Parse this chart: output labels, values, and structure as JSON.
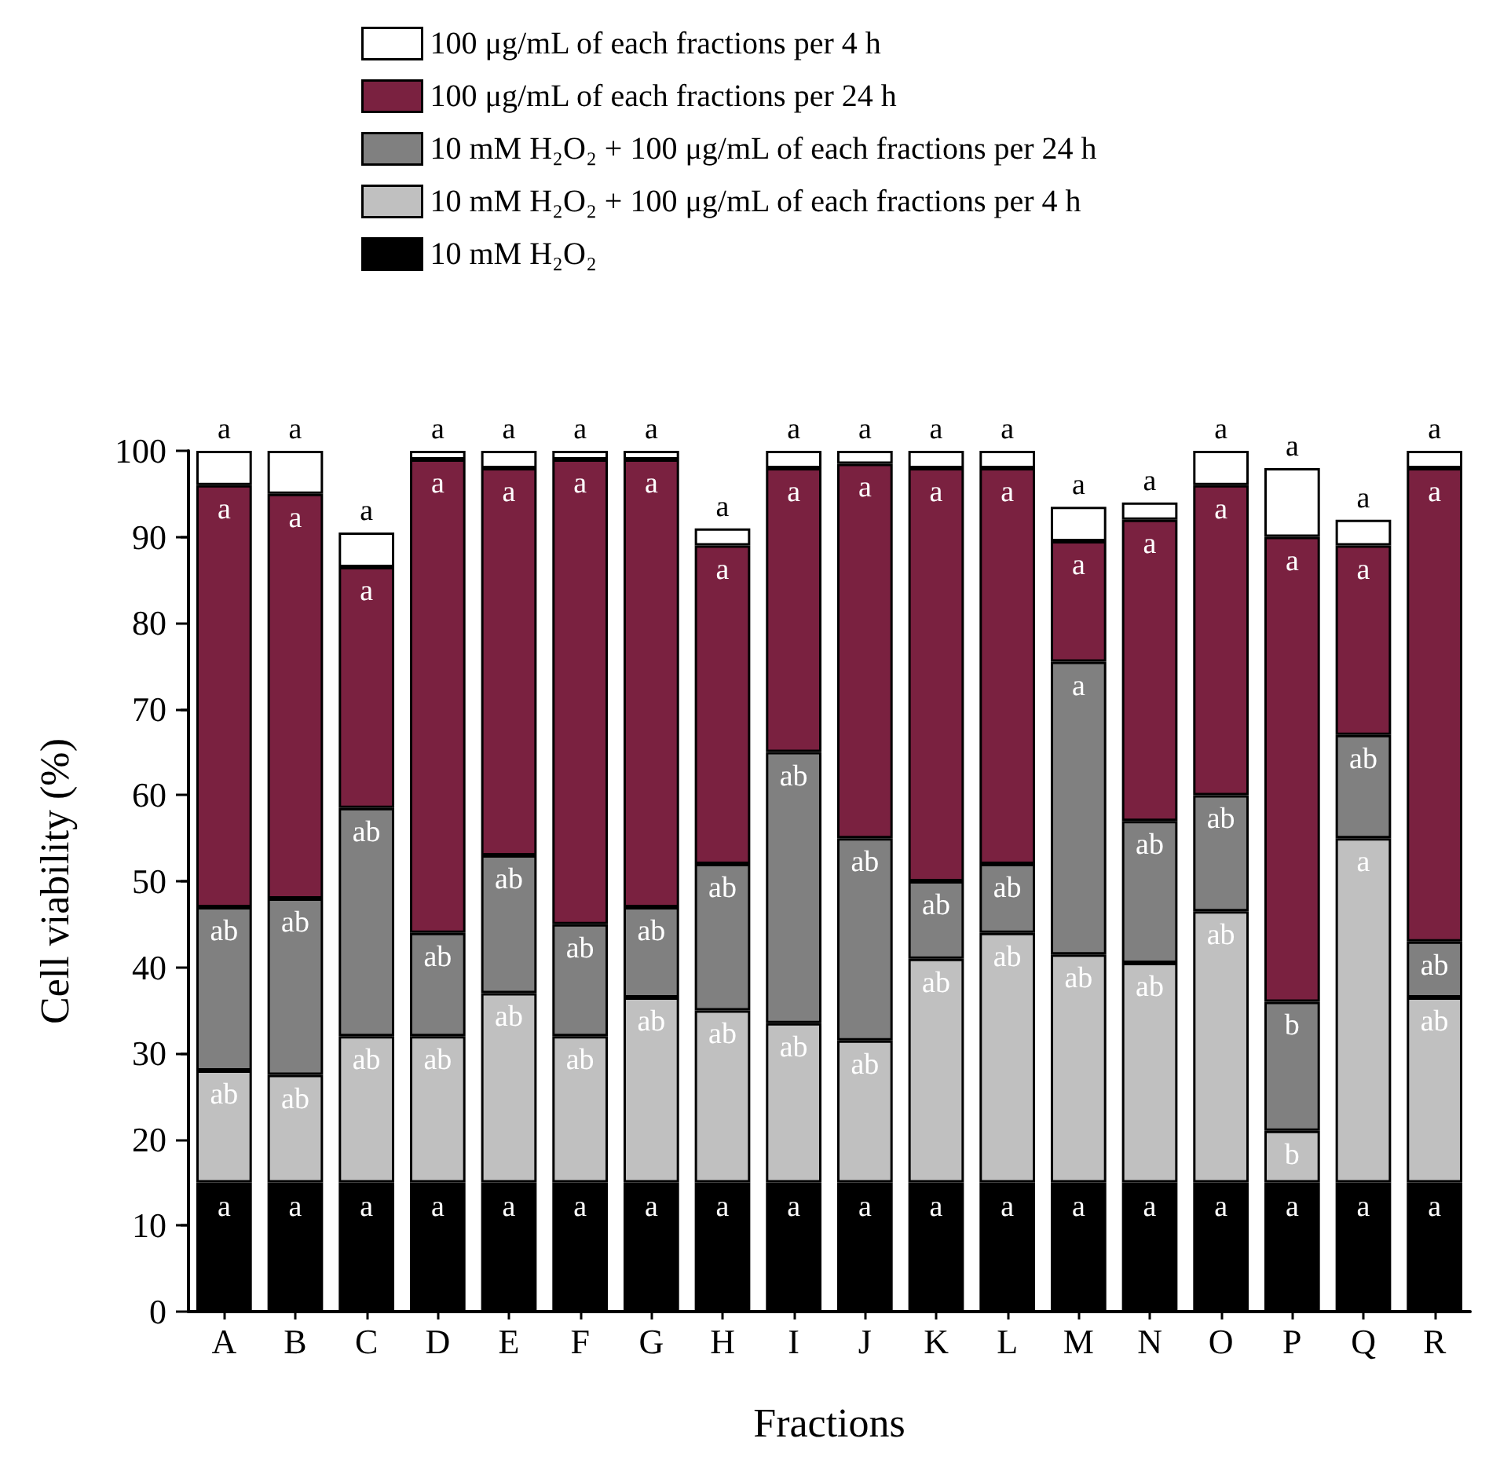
{
  "chart_data": {
    "type": "bar",
    "stacked": true,
    "xlabel": "Fractions",
    "ylabel": "Cell viability (%)",
    "categories": [
      "A",
      "B",
      "C",
      "D",
      "E",
      "F",
      "G",
      "H",
      "I",
      "J",
      "K",
      "L",
      "M",
      "N",
      "O",
      "P",
      "Q",
      "R"
    ],
    "series": [
      {
        "name": "10 mM H₂O₂",
        "color": "#000000",
        "values": [
          15,
          15,
          15,
          15,
          15,
          15,
          15,
          15,
          15,
          15,
          15,
          15,
          15,
          15,
          15,
          15,
          15,
          15
        ],
        "value_labels": [
          "a",
          "a",
          "a",
          "a",
          "a",
          "a",
          "a",
          "a",
          "a",
          "a",
          "a",
          "a",
          "a",
          "a",
          "a",
          "a",
          "a",
          "a"
        ]
      },
      {
        "name": "10 mM H₂O₂ + 100 μg/mL of each fractions per 4 h",
        "color": "#c0c0c0",
        "values": [
          13,
          12.5,
          17,
          17,
          22,
          17,
          21.5,
          20,
          18.5,
          16.5,
          26,
          29,
          26.5,
          25.5,
          31.5,
          6,
          40,
          21.5
        ],
        "value_labels": [
          "ab",
          "ab",
          "ab",
          "ab",
          "ab",
          "ab",
          "ab",
          "ab",
          "ab",
          "ab",
          "ab",
          "ab",
          "ab",
          "ab",
          "ab",
          "b",
          "a",
          "ab"
        ]
      },
      {
        "name": "10 mM H₂O₂ + 100 μg/mL of each fractions per 24 h",
        "color": "#808080",
        "values": [
          19,
          20.5,
          26.5,
          12,
          16,
          13,
          10.5,
          17,
          31.5,
          23.5,
          9,
          8,
          34,
          16.5,
          13.5,
          15,
          12,
          6.5
        ],
        "value_labels": [
          "ab",
          "ab",
          "ab",
          "ab",
          "ab",
          "ab",
          "ab",
          "ab",
          "ab",
          "ab",
          "ab",
          "ab",
          "a",
          "ab",
          "ab",
          "b",
          "ab",
          "ab"
        ]
      },
      {
        "name": "100 μg/mL of each fractions per 24 h",
        "color": "#7a2140",
        "values": [
          49,
          47,
          28,
          55,
          45,
          54,
          52,
          37,
          33,
          43.5,
          48,
          46,
          14,
          35,
          36,
          54,
          22,
          55
        ],
        "value_labels": [
          "a",
          "a",
          "a",
          "a",
          "a",
          "a",
          "a",
          "a",
          "a",
          "a",
          "a",
          "a",
          "a",
          "a",
          "a",
          "a",
          "a",
          "a"
        ]
      },
      {
        "name": "100 μg/mL of each fractions per 4 h",
        "color": "#ffffff",
        "values": [
          4,
          5,
          4,
          1,
          2,
          1,
          1,
          2,
          2,
          1.5,
          2,
          2,
          4,
          2,
          4,
          8,
          3,
          2
        ],
        "value_labels": [
          "a",
          "a",
          "a",
          "a",
          "a",
          "a",
          "a",
          "a",
          "a",
          "a",
          "a",
          "a",
          "a",
          "a",
          "a",
          "a",
          "a",
          "a"
        ]
      }
    ],
    "ylim": [
      0,
      100
    ],
    "yticks": [
      0,
      10,
      20,
      30,
      40,
      50,
      60,
      70,
      80,
      90,
      100
    ],
    "grid": false,
    "legend": "top left"
  }
}
